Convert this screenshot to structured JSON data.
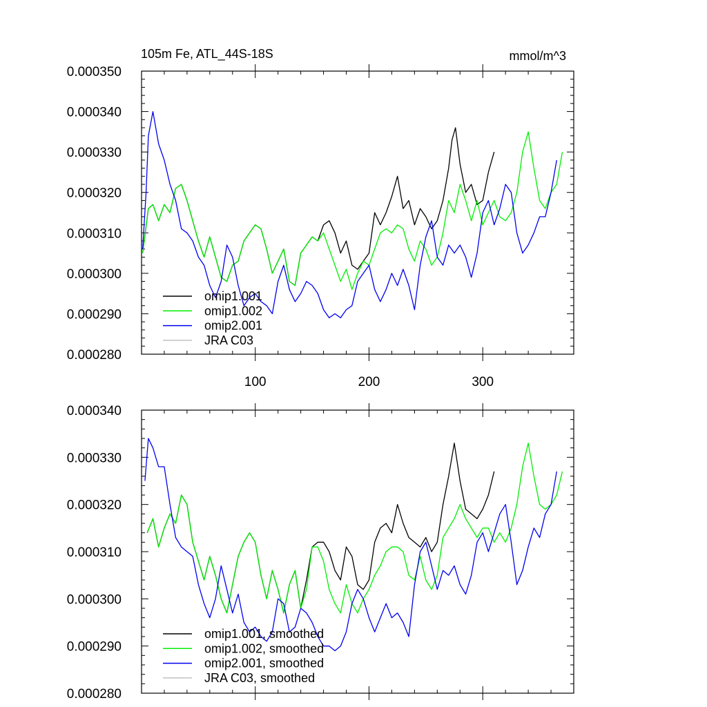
{
  "chart_data": [
    {
      "type": "line",
      "title": "105m Fe, ATL_44S-18S",
      "units": "mmol/m^3",
      "xlim": [
        0,
        380
      ],
      "ylim": [
        0.00028,
        0.00035
      ],
      "xticks": [
        100,
        200,
        300
      ],
      "xtick_labels": [
        "100",
        "200",
        "300"
      ],
      "yticks": [
        0.00028,
        0.00029,
        0.0003,
        0.00031,
        0.00032,
        0.00033,
        0.00034,
        0.00035
      ],
      "ytick_labels": [
        "0.000280",
        "0.000290",
        "0.000300",
        "0.000310",
        "0.000320",
        "0.000330",
        "0.000340",
        "0.000350"
      ],
      "legend": [
        "omip1.001",
        "omip1.002",
        "omip2.001",
        "JRA C03"
      ],
      "colors": [
        "#000000",
        "#00ee00",
        "#0000ee",
        "#c0c0c0"
      ],
      "series": [
        {
          "name": "omip1.001",
          "x": [
            1,
            6,
            10,
            15,
            20,
            25,
            30,
            35,
            40,
            45,
            50,
            55,
            60,
            65,
            70,
            75,
            80,
            85,
            90,
            95,
            100,
            105,
            110,
            115,
            120,
            125,
            130,
            135,
            140,
            145,
            150,
            155,
            160,
            165,
            170,
            175,
            180,
            185,
            190,
            195,
            200,
            205,
            210,
            215,
            220,
            225,
            230,
            235,
            240,
            245,
            250,
            255,
            260,
            265,
            270,
            273,
            276,
            280,
            285,
            290,
            295,
            300,
            305,
            310
          ],
          "values": [
            0.000305,
            0.000316,
            0.000317,
            0.000313,
            0.000317,
            0.000315,
            0.000321,
            0.000322,
            0.000318,
            0.000313,
            0.000308,
            0.000304,
            0.000309,
            0.000304,
            0.000299,
            0.000298,
            0.000302,
            0.000303,
            0.000308,
            0.00031,
            0.000312,
            0.000311,
            0.000306,
            0.0003,
            0.000303,
            0.000306,
            0.000298,
            0.000297,
            0.000305,
            0.000307,
            0.000309,
            0.000308,
            0.000312,
            0.000313,
            0.00031,
            0.000305,
            0.000308,
            0.000302,
            0.000301,
            0.000303,
            0.000305,
            0.000315,
            0.000312,
            0.000315,
            0.000319,
            0.000324,
            0.000316,
            0.000318,
            0.000312,
            0.000316,
            0.000314,
            0.000311,
            0.000313,
            0.000318,
            0.000326,
            0.000333,
            0.000336,
            0.000327,
            0.00032,
            0.000322,
            0.000317,
            0.000318,
            0.000325,
            0.00033
          ]
        },
        {
          "name": "omip1.002",
          "x": [
            1,
            6,
            10,
            15,
            20,
            25,
            30,
            35,
            40,
            45,
            50,
            55,
            60,
            65,
            70,
            75,
            80,
            85,
            90,
            95,
            100,
            105,
            110,
            115,
            120,
            125,
            130,
            135,
            140,
            145,
            150,
            155,
            160,
            165,
            170,
            175,
            180,
            185,
            190,
            195,
            200,
            205,
            210,
            215,
            220,
            225,
            230,
            235,
            240,
            245,
            250,
            255,
            260,
            265,
            270,
            275,
            280,
            285,
            290,
            295,
            300,
            305,
            310,
            315,
            320,
            325,
            330,
            335,
            340,
            345,
            350,
            355,
            360,
            365,
            370
          ],
          "values": [
            0.000305,
            0.000316,
            0.000317,
            0.000313,
            0.000317,
            0.000315,
            0.000321,
            0.000322,
            0.000318,
            0.000313,
            0.000308,
            0.000304,
            0.000309,
            0.000304,
            0.000299,
            0.000298,
            0.000302,
            0.000303,
            0.000308,
            0.00031,
            0.000312,
            0.000311,
            0.000306,
            0.0003,
            0.000303,
            0.000306,
            0.000298,
            0.000297,
            0.000305,
            0.000307,
            0.000309,
            0.000308,
            0.00031,
            0.000306,
            0.000302,
            0.000298,
            0.000301,
            0.000296,
            0.0003,
            0.000303,
            0.000302,
            0.000306,
            0.00031,
            0.000311,
            0.00031,
            0.000312,
            0.000311,
            0.000306,
            0.000303,
            0.000308,
            0.000306,
            0.000302,
            0.000304,
            0.00031,
            0.000318,
            0.000315,
            0.000322,
            0.000318,
            0.000313,
            0.000318,
            0.000312,
            0.000315,
            0.000318,
            0.000314,
            0.000313,
            0.000315,
            0.00032,
            0.00033,
            0.000335,
            0.000326,
            0.000318,
            0.000316,
            0.00032,
            0.000322,
            0.00033
          ]
        },
        {
          "name": "omip2.001",
          "x": [
            1,
            4,
            6,
            10,
            15,
            20,
            25,
            30,
            35,
            40,
            45,
            50,
            55,
            60,
            65,
            70,
            75,
            80,
            85,
            90,
            95,
            100,
            105,
            110,
            115,
            120,
            125,
            130,
            135,
            140,
            145,
            150,
            155,
            160,
            165,
            170,
            175,
            180,
            185,
            190,
            195,
            200,
            205,
            210,
            215,
            220,
            225,
            230,
            235,
            240,
            245,
            250,
            255,
            260,
            265,
            270,
            275,
            280,
            285,
            290,
            295,
            300,
            305,
            310,
            315,
            320,
            325,
            330,
            335,
            340,
            345,
            350,
            355,
            360,
            365
          ],
          "values": [
            0.000306,
            0.00032,
            0.000334,
            0.00034,
            0.000332,
            0.000328,
            0.000322,
            0.000318,
            0.000311,
            0.00031,
            0.000308,
            0.000304,
            0.000302,
            0.000297,
            0.000294,
            0.000298,
            0.000307,
            0.000304,
            0.000297,
            0.000292,
            0.000294,
            0.000295,
            0.000293,
            0.000292,
            0.00029,
            0.000298,
            0.000302,
            0.000296,
            0.000293,
            0.000295,
            0.000298,
            0.000297,
            0.000295,
            0.000291,
            0.000289,
            0.00029,
            0.000289,
            0.000291,
            0.000292,
            0.000298,
            0.0003,
            0.000302,
            0.000296,
            0.000293,
            0.000296,
            0.0003,
            0.000297,
            0.000301,
            0.000297,
            0.000291,
            0.000302,
            0.000309,
            0.000313,
            0.000304,
            0.000302,
            0.000307,
            0.000305,
            0.000307,
            0.000304,
            0.000299,
            0.000305,
            0.000315,
            0.000318,
            0.000312,
            0.000316,
            0.000322,
            0.00032,
            0.00031,
            0.000305,
            0.000307,
            0.00031,
            0.000314,
            0.000314,
            0.00032,
            0.000328
          ]
        }
      ]
    },
    {
      "type": "line",
      "title": "",
      "units": "",
      "xlim": [
        0,
        380
      ],
      "ylim": [
        0.00028,
        0.00034
      ],
      "xticks": [
        100,
        200,
        300
      ],
      "xtick_labels": [],
      "yticks": [
        0.00028,
        0.00029,
        0.0003,
        0.00031,
        0.00032,
        0.00033,
        0.00034
      ],
      "ytick_labels": [
        "0.000280",
        "0.000290",
        "0.000300",
        "0.000310",
        "0.000320",
        "0.000330",
        "0.000340"
      ],
      "legend": [
        "omip1.001, smoothed",
        "omip1.002, smoothed",
        "omip2.001, smoothed",
        "JRA C03, smoothed"
      ],
      "colors": [
        "#000000",
        "#00ee00",
        "#0000ee",
        "#c0c0c0"
      ],
      "series": [
        {
          "name": "omip1.001, smoothed",
          "x": [
            5,
            10,
            15,
            20,
            25,
            30,
            35,
            40,
            45,
            50,
            55,
            60,
            65,
            70,
            75,
            80,
            85,
            90,
            95,
            100,
            105,
            110,
            115,
            120,
            125,
            130,
            135,
            140,
            145,
            150,
            155,
            160,
            165,
            170,
            175,
            180,
            185,
            190,
            195,
            200,
            205,
            210,
            215,
            220,
            225,
            230,
            235,
            240,
            245,
            250,
            255,
            260,
            265,
            270,
            275,
            280,
            285,
            290,
            295,
            300,
            305,
            310
          ],
          "values": [
            0.000314,
            0.000317,
            0.000311,
            0.000315,
            0.000318,
            0.000316,
            0.000322,
            0.00032,
            0.000312,
            0.000308,
            0.000304,
            0.000309,
            0.000305,
            0.0003,
            0.000297,
            0.000303,
            0.000309,
            0.000312,
            0.000314,
            0.000312,
            0.000305,
            0.0003,
            0.000306,
            0.000302,
            0.000297,
            0.000303,
            0.000306,
            0.000298,
            0.000304,
            0.000311,
            0.000312,
            0.000312,
            0.00031,
            0.000306,
            0.000304,
            0.000311,
            0.000309,
            0.000303,
            0.000302,
            0.000304,
            0.000312,
            0.000315,
            0.000316,
            0.000314,
            0.00032,
            0.000316,
            0.000313,
            0.000312,
            0.000311,
            0.000313,
            0.00031,
            0.000312,
            0.00032,
            0.000326,
            0.000333,
            0.000325,
            0.000319,
            0.000318,
            0.000317,
            0.000319,
            0.000322,
            0.000327
          ]
        },
        {
          "name": "omip1.002, smoothed",
          "x": [
            5,
            10,
            15,
            20,
            25,
            30,
            35,
            40,
            45,
            50,
            55,
            60,
            65,
            70,
            75,
            80,
            85,
            90,
            95,
            100,
            105,
            110,
            115,
            120,
            125,
            130,
            135,
            140,
            145,
            150,
            155,
            160,
            165,
            170,
            175,
            180,
            185,
            190,
            195,
            200,
            205,
            210,
            215,
            220,
            225,
            230,
            235,
            240,
            245,
            250,
            255,
            260,
            265,
            270,
            275,
            280,
            285,
            290,
            295,
            300,
            305,
            310,
            315,
            320,
            325,
            330,
            335,
            340,
            345,
            350,
            355,
            360,
            365,
            370
          ],
          "values": [
            0.000314,
            0.000317,
            0.000311,
            0.000315,
            0.000318,
            0.000316,
            0.000322,
            0.00032,
            0.000312,
            0.000308,
            0.000304,
            0.000309,
            0.000305,
            0.0003,
            0.000297,
            0.000303,
            0.000309,
            0.000312,
            0.000314,
            0.000312,
            0.000305,
            0.0003,
            0.000306,
            0.000302,
            0.000297,
            0.000303,
            0.000306,
            0.000298,
            0.000302,
            0.000311,
            0.000311,
            0.000308,
            0.000302,
            0.000299,
            0.000297,
            0.000303,
            0.000299,
            0.000297,
            0.0003,
            0.000302,
            0.000305,
            0.000307,
            0.00031,
            0.000311,
            0.000311,
            0.00031,
            0.000305,
            0.000304,
            0.000309,
            0.000304,
            0.000302,
            0.000305,
            0.000313,
            0.000315,
            0.000317,
            0.00032,
            0.000317,
            0.000315,
            0.000313,
            0.000315,
            0.000315,
            0.000312,
            0.000314,
            0.000312,
            0.000315,
            0.00032,
            0.000328,
            0.000333,
            0.000326,
            0.00032,
            0.000319,
            0.00032,
            0.000322,
            0.000327
          ]
        },
        {
          "name": "omip2.001, smoothed",
          "x": [
            3,
            6,
            10,
            15,
            20,
            25,
            30,
            35,
            40,
            45,
            50,
            55,
            60,
            65,
            70,
            75,
            80,
            85,
            90,
            95,
            100,
            105,
            110,
            115,
            120,
            125,
            130,
            135,
            140,
            145,
            150,
            155,
            160,
            165,
            170,
            175,
            180,
            185,
            190,
            195,
            200,
            205,
            210,
            215,
            220,
            225,
            230,
            235,
            240,
            245,
            250,
            255,
            260,
            265,
            270,
            275,
            280,
            285,
            290,
            295,
            300,
            305,
            310,
            315,
            320,
            325,
            330,
            335,
            340,
            345,
            350,
            355,
            360,
            365
          ],
          "values": [
            0.000325,
            0.000334,
            0.000332,
            0.000328,
            0.000328,
            0.00032,
            0.000313,
            0.000311,
            0.00031,
            0.000309,
            0.000303,
            0.000299,
            0.000296,
            0.0003,
            0.000307,
            0.000302,
            0.000297,
            0.000301,
            0.000295,
            0.000293,
            0.000294,
            0.000292,
            0.000291,
            0.000293,
            0.0003,
            0.000299,
            0.000293,
            0.000294,
            0.000298,
            0.000297,
            0.000295,
            0.000292,
            0.00029,
            0.00029,
            0.000289,
            0.00029,
            0.000293,
            0.000299,
            0.000302,
            0.0003,
            0.000296,
            0.000293,
            0.000296,
            0.000299,
            0.000296,
            0.000297,
            0.000295,
            0.000292,
            0.000303,
            0.00031,
            0.000312,
            0.000307,
            0.000302,
            0.000306,
            0.000305,
            0.000307,
            0.000303,
            0.000301,
            0.000305,
            0.000312,
            0.000314,
            0.00031,
            0.000314,
            0.000318,
            0.00032,
            0.000312,
            0.000303,
            0.000306,
            0.000311,
            0.000315,
            0.000313,
            0.000318,
            0.00032,
            0.000327
          ]
        }
      ]
    }
  ]
}
